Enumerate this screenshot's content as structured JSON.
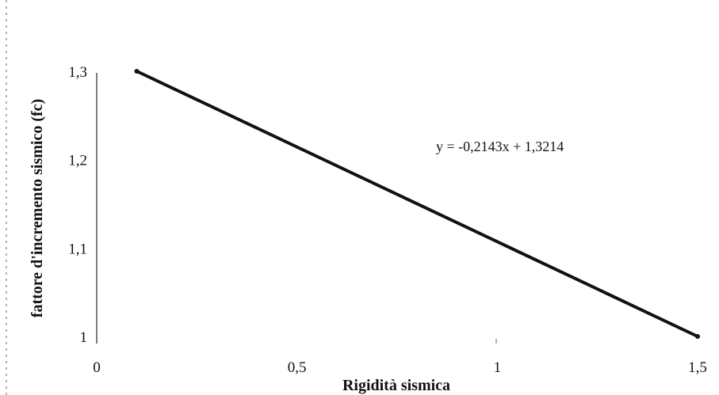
{
  "chart_data": {
    "type": "line",
    "title": "",
    "xlabel": "Rigidità sismica",
    "ylabel": "fattore d'incremento sismico (fc)",
    "xlim": [
      0,
      1.5
    ],
    "ylim": [
      1,
      1.3
    ],
    "x_ticks": [
      "0",
      "0,5",
      "1",
      "1,5"
    ],
    "y_ticks": [
      "1",
      "1,1",
      "1,2",
      "1,3"
    ],
    "grid": false,
    "legend": "none",
    "series": [
      {
        "x": [
          0.1,
          1.5
        ],
        "y": [
          1.3,
          1.0
        ]
      }
    ],
    "annotations": [
      {
        "text": "y = -0,2143x + 1,3214"
      }
    ],
    "colors": {
      "line": "#111111",
      "axis": "#333333"
    }
  }
}
